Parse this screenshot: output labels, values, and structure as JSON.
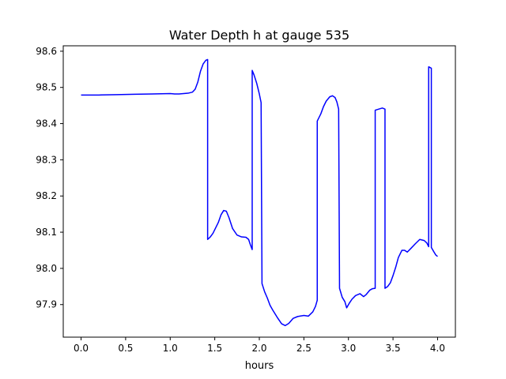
{
  "chart_data": {
    "type": "line",
    "title": "Water Depth h at gauge 535",
    "xlabel": "hours",
    "ylabel": "",
    "xlim": [
      -0.2,
      4.2
    ],
    "ylim": [
      97.81,
      98.615
    ],
    "x_ticks": [
      0.0,
      0.5,
      1.0,
      1.5,
      2.0,
      2.5,
      3.0,
      3.5,
      4.0
    ],
    "x_tick_labels": [
      "0.0",
      "0.5",
      "1.0",
      "1.5",
      "2.0",
      "2.5",
      "3.0",
      "3.5",
      "4.0"
    ],
    "y_ticks": [
      97.9,
      98.0,
      98.1,
      98.2,
      98.3,
      98.4,
      98.5,
      98.6
    ],
    "y_tick_labels": [
      "97.9",
      "98.0",
      "98.1",
      "98.2",
      "98.3",
      "98.4",
      "98.5",
      "98.6"
    ],
    "grid": false,
    "series": [
      {
        "color": "#0000ff",
        "points": [
          [
            0.0,
            98.479
          ],
          [
            0.2,
            98.479
          ],
          [
            0.4,
            98.48
          ],
          [
            0.6,
            98.481
          ],
          [
            0.8,
            98.482
          ],
          [
            1.0,
            98.483
          ],
          [
            1.05,
            98.482
          ],
          [
            1.1,
            98.482
          ],
          [
            1.2,
            98.484
          ],
          [
            1.25,
            98.487
          ],
          [
            1.28,
            98.495
          ],
          [
            1.31,
            98.515
          ],
          [
            1.34,
            98.545
          ],
          [
            1.37,
            98.565
          ],
          [
            1.4,
            98.575
          ],
          [
            1.42,
            98.577
          ],
          [
            1.42,
            98.08
          ],
          [
            1.45,
            98.087
          ],
          [
            1.48,
            98.097
          ],
          [
            1.51,
            98.112
          ],
          [
            1.54,
            98.127
          ],
          [
            1.57,
            98.148
          ],
          [
            1.6,
            98.16
          ],
          [
            1.63,
            98.158
          ],
          [
            1.66,
            98.14
          ],
          [
            1.7,
            98.11
          ],
          [
            1.75,
            98.092
          ],
          [
            1.8,
            98.087
          ],
          [
            1.85,
            98.086
          ],
          [
            1.88,
            98.08
          ],
          [
            1.9,
            98.065
          ],
          [
            1.92,
            98.052
          ],
          [
            1.92,
            98.547
          ],
          [
            1.94,
            98.535
          ],
          [
            1.97,
            98.512
          ],
          [
            2.0,
            98.482
          ],
          [
            2.02,
            98.458
          ],
          [
            2.03,
            97.958
          ],
          [
            2.06,
            97.935
          ],
          [
            2.09,
            97.918
          ],
          [
            2.12,
            97.898
          ],
          [
            2.15,
            97.885
          ],
          [
            2.2,
            97.865
          ],
          [
            2.25,
            97.847
          ],
          [
            2.29,
            97.842
          ],
          [
            2.33,
            97.848
          ],
          [
            2.38,
            97.862
          ],
          [
            2.43,
            97.867
          ],
          [
            2.5,
            97.87
          ],
          [
            2.55,
            97.868
          ],
          [
            2.6,
            97.88
          ],
          [
            2.63,
            97.895
          ],
          [
            2.65,
            97.912
          ],
          [
            2.65,
            98.407
          ],
          [
            2.69,
            98.427
          ],
          [
            2.72,
            98.447
          ],
          [
            2.75,
            98.462
          ],
          [
            2.79,
            98.474
          ],
          [
            2.82,
            98.477
          ],
          [
            2.85,
            98.472
          ],
          [
            2.87,
            98.46
          ],
          [
            2.89,
            98.44
          ],
          [
            2.9,
            97.945
          ],
          [
            2.93,
            97.92
          ],
          [
            2.96,
            97.908
          ],
          [
            2.98,
            97.891
          ],
          [
            3.01,
            97.904
          ],
          [
            3.04,
            97.915
          ],
          [
            3.08,
            97.925
          ],
          [
            3.13,
            97.93
          ],
          [
            3.17,
            97.922
          ],
          [
            3.2,
            97.928
          ],
          [
            3.24,
            97.94
          ],
          [
            3.27,
            97.944
          ],
          [
            3.3,
            97.945
          ],
          [
            3.3,
            98.437
          ],
          [
            3.34,
            98.44
          ],
          [
            3.38,
            98.443
          ],
          [
            3.41,
            98.44
          ],
          [
            3.41,
            97.945
          ],
          [
            3.44,
            97.95
          ],
          [
            3.47,
            97.96
          ],
          [
            3.5,
            97.98
          ],
          [
            3.53,
            98.003
          ],
          [
            3.56,
            98.03
          ],
          [
            3.6,
            98.05
          ],
          [
            3.63,
            98.05
          ],
          [
            3.66,
            98.045
          ],
          [
            3.7,
            98.055
          ],
          [
            3.75,
            98.068
          ],
          [
            3.8,
            98.08
          ],
          [
            3.85,
            98.077
          ],
          [
            3.88,
            98.07
          ],
          [
            3.9,
            98.06
          ],
          [
            3.9,
            98.557
          ],
          [
            3.93,
            98.553
          ],
          [
            3.93,
            98.058
          ],
          [
            3.96,
            98.045
          ],
          [
            3.98,
            98.037
          ],
          [
            4.0,
            98.033
          ]
        ]
      }
    ]
  }
}
